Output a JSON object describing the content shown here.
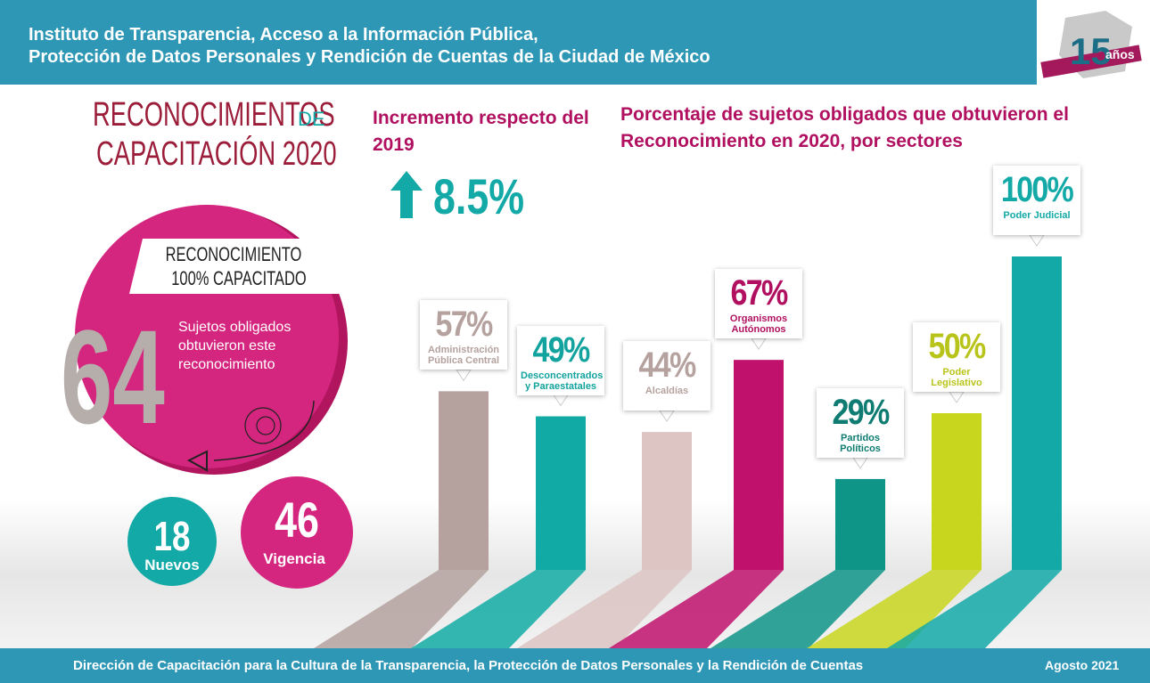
{
  "header": {
    "line1": "Instituto de Transparencia, Acceso a la Información Pública,",
    "line2": "Protección de Datos Personales y Rendición de Cuentas de la Ciudad de México",
    "logo_number": "15",
    "logo_word": "años"
  },
  "left": {
    "title1": "RECONOCIMIENTOS",
    "title_de": "DE",
    "title2": "CAPACITACIÓN 2020",
    "banner1": "RECONOCIMIENTO",
    "banner2": "100% CAPACITADO",
    "total": "64",
    "total_text": "Sujetos obligados obtuvieron este reconocimiento",
    "new_count": "18",
    "new_label": "Nuevos",
    "valid_count": "46",
    "valid_label": "Vigencia"
  },
  "increase": {
    "title": "Incremento respecto del 2019",
    "value": "8.5%"
  },
  "chart_data": {
    "type": "bar",
    "title": "Porcentaje de sujetos obligados que obtuvieron el Reconocimiento en 2020, por sectores",
    "categories": [
      "Administración Pública Central",
      "Desconcentrados y Paraestatales",
      "Alcaldías",
      "Organismos Autónomos",
      "Partidos Políticos",
      "Poder Legislativo",
      "Poder Judicial"
    ],
    "values": [
      57,
      49,
      44,
      67,
      29,
      50,
      100
    ],
    "value_labels": [
      "57%",
      "49%",
      "44%",
      "67%",
      "29%",
      "50%",
      "100%"
    ],
    "colors": [
      "#b5a29f",
      "#12aaa5",
      "#dcc5c3",
      "#c0126d",
      "#0f9488",
      "#c9d61e",
      "#13a9a7"
    ]
  },
  "footer": {
    "text": "Dirección de Capacitación para la Cultura de la Transparencia, la Protección de Datos Personales y la Rendición de Cuentas",
    "date": "Agosto 2021"
  }
}
